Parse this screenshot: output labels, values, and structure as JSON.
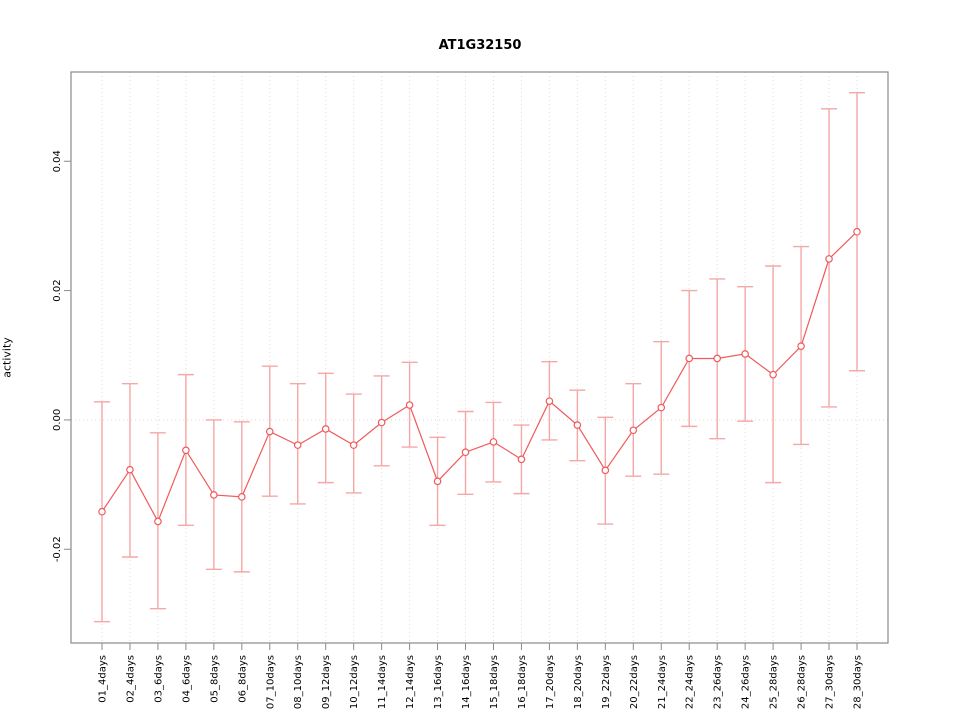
{
  "chart_data": {
    "type": "line",
    "title": "AT1G32150",
    "ylabel": "activity",
    "xlabel": "",
    "legend": "none",
    "point_style": "open-circle",
    "grid": "vertical-dotted",
    "zero_line": true,
    "categories": [
      "01_4days",
      "02_4days",
      "03_6days",
      "04_6days",
      "05_8days",
      "06_8days",
      "07_10days",
      "08_10days",
      "09_12days",
      "10_12days",
      "11_14days",
      "12_14days",
      "13_16days",
      "14_16days",
      "15_18days",
      "16_18days",
      "17_20days",
      "18_20days",
      "19_22days",
      "20_22days",
      "21_24days",
      "22_24days",
      "23_26days",
      "24_26days",
      "25_28days",
      "26_28days",
      "27_30days",
      "28_30days"
    ],
    "series": [
      {
        "name": "activity",
        "means": [
          -0.0142,
          -0.0077,
          -0.0157,
          -0.0047,
          -0.0116,
          -0.0119,
          -0.0018,
          -0.0039,
          -0.0014,
          -0.0039,
          -0.0004,
          0.0023,
          -0.0095,
          -0.005,
          -0.0034,
          -0.0061,
          0.0029,
          -0.0008,
          -0.0078,
          -0.0016,
          0.0019,
          0.0095,
          0.0095,
          0.0102,
          0.007,
          0.0114,
          0.0249,
          0.0291
        ],
        "upper": [
          0.0028,
          0.0056,
          -0.002,
          0.007,
          0.0,
          -0.0003,
          0.0083,
          0.0056,
          0.0072,
          0.004,
          0.0068,
          0.0089,
          -0.0027,
          0.0013,
          0.0027,
          -0.0008,
          0.009,
          0.0046,
          0.0004,
          0.0056,
          0.0121,
          0.02,
          0.0218,
          0.0206,
          0.0238,
          0.0268,
          0.0481,
          0.0506
        ],
        "lower": [
          -0.0312,
          -0.0212,
          -0.0292,
          -0.0163,
          -0.0231,
          -0.0235,
          -0.0118,
          -0.013,
          -0.0097,
          -0.0113,
          -0.0071,
          -0.0042,
          -0.0163,
          -0.0115,
          -0.0096,
          -0.0114,
          -0.0031,
          -0.0063,
          -0.0161,
          -0.0087,
          -0.0084,
          -0.001,
          -0.0029,
          -0.0002,
          -0.0097,
          -0.0038,
          0.002,
          0.0076
        ]
      }
    ],
    "ylim": [
      -0.0345,
      0.0538
    ],
    "yticks": [
      {
        "value": -0.02,
        "label": "-0.02"
      },
      {
        "value": 0.0,
        "label": "0.00"
      },
      {
        "value": 0.02,
        "label": "0.02"
      },
      {
        "value": 0.04,
        "label": "0.04"
      }
    ],
    "colors": {
      "series": "#f05a5a",
      "error_bar": "#f5a6a6",
      "gridline": "#dcdcdc",
      "zero_line": "#e9d2d2",
      "box": "#8a8a8a",
      "tick": "#8a8a8a",
      "text": "#000000"
    }
  }
}
